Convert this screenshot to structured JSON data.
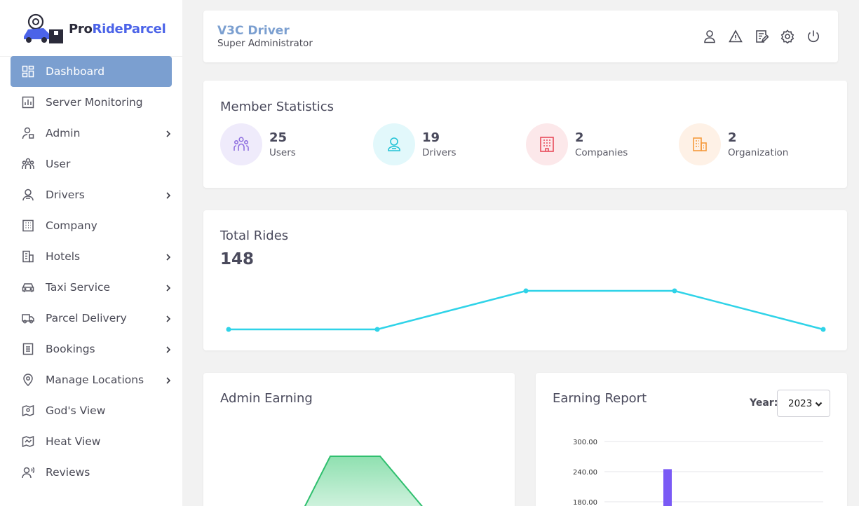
{
  "brand": {
    "name_part1": "Pro",
    "name_part2": "RideParcel"
  },
  "sidebar": {
    "items": [
      {
        "label": "Dashboard",
        "icon": "dashboard-icon",
        "active": true,
        "has_submenu": false
      },
      {
        "label": "Server Monitoring",
        "icon": "bar-chart-icon",
        "active": false,
        "has_submenu": false
      },
      {
        "label": "Admin",
        "icon": "admin-user-icon",
        "active": false,
        "has_submenu": true
      },
      {
        "label": "User",
        "icon": "users-group-icon",
        "active": false,
        "has_submenu": false
      },
      {
        "label": "Drivers",
        "icon": "driver-icon",
        "active": false,
        "has_submenu": true
      },
      {
        "label": "Company",
        "icon": "building-icon",
        "active": false,
        "has_submenu": false
      },
      {
        "label": "Hotels",
        "icon": "hotel-icon",
        "active": false,
        "has_submenu": true
      },
      {
        "label": "Taxi Service",
        "icon": "taxi-icon",
        "active": false,
        "has_submenu": true
      },
      {
        "label": "Parcel Delivery",
        "icon": "truck-icon",
        "active": false,
        "has_submenu": true
      },
      {
        "label": "Bookings",
        "icon": "bookings-icon",
        "active": false,
        "has_submenu": true
      },
      {
        "label": "Manage Locations",
        "icon": "location-pin-icon",
        "active": false,
        "has_submenu": true
      },
      {
        "label": "God's View",
        "icon": "map-pin-icon",
        "active": false,
        "has_submenu": false
      },
      {
        "label": "Heat View",
        "icon": "heat-map-icon",
        "active": false,
        "has_submenu": false
      },
      {
        "label": "Reviews",
        "icon": "reviews-icon",
        "active": false,
        "has_submenu": false
      }
    ]
  },
  "header": {
    "title": "V3C Driver",
    "subtitle": "Super Administrator",
    "icons": [
      "profile-icon",
      "alert-triangle-icon",
      "edit-note-icon",
      "settings-icon",
      "power-icon"
    ]
  },
  "member_statistics": {
    "title": "Member Statistics",
    "stats": [
      {
        "value": "25",
        "label": "Users",
        "icon": "users-group-icon",
        "color": "#8f6fe0",
        "bg": "#efebfb"
      },
      {
        "value": "19",
        "label": "Drivers",
        "icon": "driver-icon",
        "color": "#22c3d6",
        "bg": "#e2f8fb"
      },
      {
        "value": "2",
        "label": "Companies",
        "icon": "building-icon",
        "color": "#e84b5a",
        "bg": "#fce8ea"
      },
      {
        "value": "2",
        "label": "Organization",
        "icon": "organization-icon",
        "color": "#f59a3c",
        "bg": "#fef1e6"
      }
    ]
  },
  "total_rides": {
    "title": "Total Rides",
    "value": "148",
    "color": "#2fd3e8",
    "chart_data": {
      "type": "line",
      "values": [
        0,
        0,
        1,
        1,
        0
      ]
    }
  },
  "admin_earning": {
    "title": "Admin Earning",
    "color": "#2fbf6e"
  },
  "earning_report": {
    "title": "Earning Report",
    "year_label": "Year:",
    "year_value": "2023",
    "bar_color": "#7a5af5",
    "chart_data": {
      "type": "bar",
      "tick_labels": [
        "300.00",
        "240.00",
        "180.00"
      ],
      "ylim_visible": [
        180,
        300
      ],
      "bars": [
        {
          "value_top": 245
        }
      ]
    }
  }
}
